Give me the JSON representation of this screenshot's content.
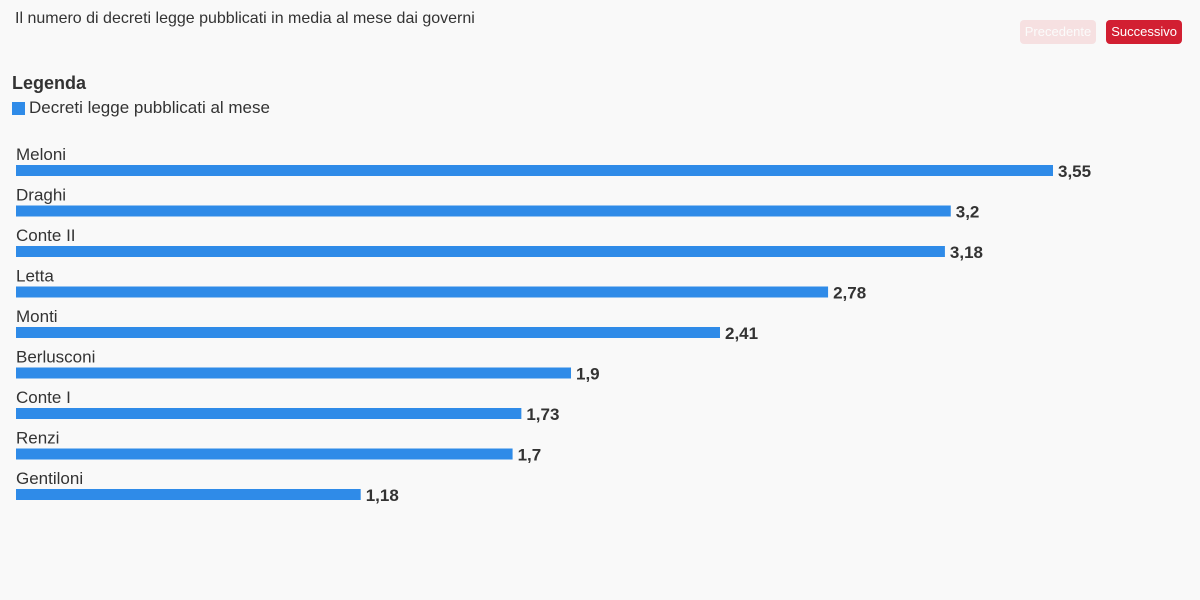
{
  "header": {
    "title": "Il numero di decreti legge pubblicati in media al mese dai governi",
    "prev_label": "Precedente",
    "next_label": "Successivo"
  },
  "legend": {
    "title": "Legenda",
    "items": [
      {
        "label": "Decreti legge pubblicati al mese",
        "color": "#2f8be8"
      }
    ]
  },
  "colors": {
    "bar": "#2f8be8",
    "prev_button_bg": "#f6e0e1",
    "next_button_bg": "#d21f32"
  },
  "chart_data": {
    "type": "bar",
    "orientation": "horizontal",
    "categories": [
      "Meloni",
      "Draghi",
      "Conte II",
      "Letta",
      "Monti",
      "Berlusconi",
      "Conte I",
      "Renzi",
      "Gentiloni"
    ],
    "values": [
      3.55,
      3.2,
      3.18,
      2.78,
      2.41,
      1.9,
      1.73,
      1.7,
      1.18
    ],
    "value_labels": [
      "3,55",
      "3,2",
      "3,18",
      "2,78",
      "2,41",
      "1,9",
      "1,73",
      "1,7",
      "1,18"
    ],
    "series": [
      {
        "name": "Decreti legge pubblicati al mese",
        "values": [
          3.55,
          3.2,
          3.18,
          2.78,
          2.41,
          1.9,
          1.73,
          1.7,
          1.18
        ]
      }
    ],
    "xlim": [
      0,
      3.55
    ],
    "grid": false,
    "legend_position": "top-left"
  }
}
